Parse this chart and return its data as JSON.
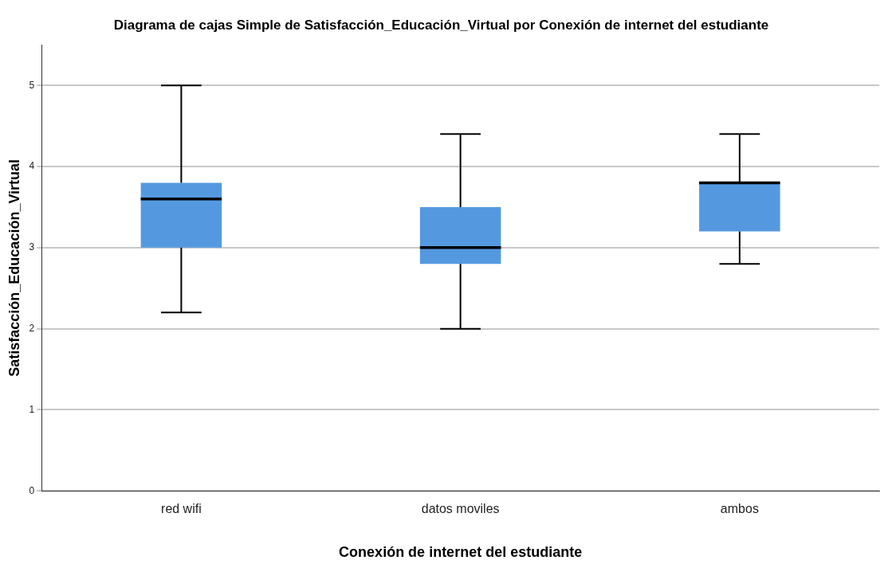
{
  "chart_data": {
    "type": "box",
    "title": "Diagrama de cajas Simple de Satisfacción_Educación_Virtual por Conexión de internet del estudiante",
    "xlabel": "Conexión de internet del estudiante",
    "ylabel": "Satisfacción_Educación_Virtual",
    "categories": [
      "red wifi",
      "datos moviles",
      "ambos"
    ],
    "boxes": [
      {
        "low": 2.2,
        "q1": 3.0,
        "median": 3.6,
        "q3": 3.8,
        "high": 5.0
      },
      {
        "low": 2.0,
        "q1": 2.8,
        "median": 3.0,
        "q3": 3.5,
        "high": 4.4
      },
      {
        "low": 2.8,
        "q1": 3.2,
        "median": 3.8,
        "q3": 3.8,
        "high": 4.4
      }
    ],
    "color": "#5499e0",
    "ylim": [
      0,
      5.5
    ],
    "yticks": [
      0,
      1,
      2,
      3,
      4,
      5
    ],
    "grid": "y",
    "legend": false
  }
}
